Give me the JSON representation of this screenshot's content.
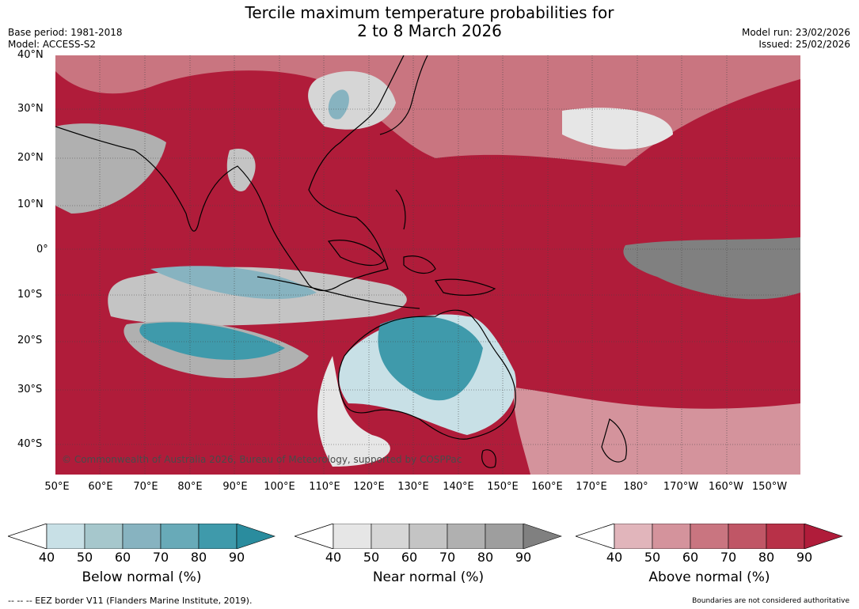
{
  "title": {
    "line1": "Tercile maximum temperature probabilities for",
    "line2": "2 to 8 March 2026"
  },
  "meta": {
    "base_period": "Base period: 1981-2018",
    "model": "Model: ACCESS-S2",
    "model_run": "Model run: 23/02/2026",
    "issued": "Issued: 25/02/2026"
  },
  "map": {
    "lat_labels": [
      "40°N",
      "30°N",
      "20°N",
      "10°N",
      "0°",
      "10°S",
      "20°S",
      "30°S",
      "40°S"
    ],
    "lon_labels": [
      "50°E",
      "60°E",
      "70°E",
      "80°E",
      "90°E",
      "100°E",
      "110°E",
      "120°E",
      "130°E",
      "140°E",
      "150°E",
      "160°E",
      "170°E",
      "180°",
      "170°W",
      "160°W",
      "150°W"
    ],
    "credit": "© Commonwealth of Australia 2026, Bureau of Meteorology, supported by COSPPac"
  },
  "colors": {
    "below": [
      "#c8e0e6",
      "#a6c7cc",
      "#87b3c0",
      "#68aab8",
      "#3f9aab",
      "#2a8c9e"
    ],
    "near": [
      "#e6e6e6",
      "#d6d6d6",
      "#c4c4c4",
      "#b0b0b0",
      "#9e9e9e",
      "#808080"
    ],
    "above": [
      "#e1b5bb",
      "#d4939c",
      "#c97580",
      "#c05666",
      "#b83148",
      "#b01c3a"
    ]
  },
  "legends": [
    {
      "id": "below",
      "title": "Below normal (%)",
      "ticks": [
        "40",
        "50",
        "60",
        "70",
        "80",
        "90"
      ]
    },
    {
      "id": "near",
      "title": "Near normal (%)",
      "ticks": [
        "40",
        "50",
        "60",
        "70",
        "80",
        "90"
      ]
    },
    {
      "id": "above",
      "title": "Above normal (%)",
      "ticks": [
        "40",
        "50",
        "60",
        "70",
        "80",
        "90"
      ]
    }
  ],
  "footer": {
    "eez": "--  --  -- EEZ border V11 (Flanders Marine Institute, 2019).",
    "boundaries": "Boundaries are not considered authoritative"
  }
}
